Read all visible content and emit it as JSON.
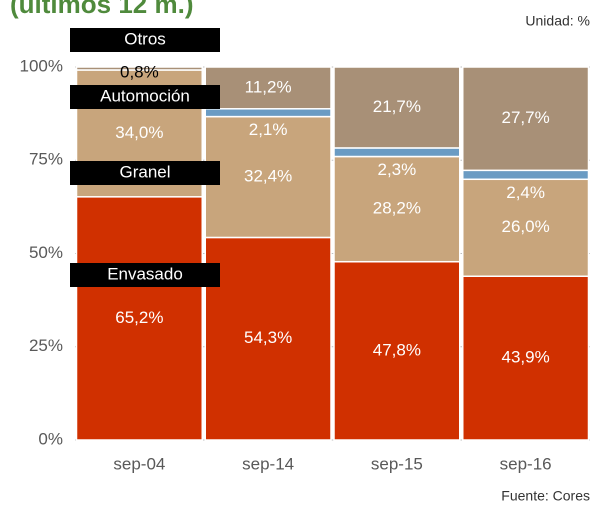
{
  "chart_data": {
    "type": "stacked_bar",
    "title": "(últimos 12 m.)",
    "unit_note": "Unidad: %",
    "source": "Fuente: Cores",
    "categories": [
      "sep-04",
      "sep-14",
      "sep-15",
      "sep-16"
    ],
    "series": [
      {
        "name": "Envasado",
        "color": "#d03000",
        "values": [
          65.2,
          54.3,
          47.8,
          43.9
        ],
        "value_labels": [
          "65,2%",
          "54,3%",
          "47,8%",
          "43,9%"
        ]
      },
      {
        "name": "Granel",
        "color": "#c8a57c",
        "values": [
          34.0,
          32.4,
          28.2,
          26.0
        ],
        "value_labels": [
          "34,0%",
          "32,4%",
          "28,2%",
          "26,0%"
        ]
      },
      {
        "name": "Automoción",
        "color": "#6a9bc3",
        "values": [
          null,
          2.1,
          2.3,
          2.4
        ],
        "value_labels": [
          null,
          "2,1%",
          "2,3%",
          "2,4%"
        ]
      },
      {
        "name": "Otros",
        "color": "#a89077",
        "values": [
          0.8,
          11.2,
          21.7,
          27.7
        ],
        "value_labels": [
          "0,8%",
          "11,2%",
          "21,7%",
          "27,7%"
        ]
      }
    ],
    "ylim": [
      0,
      100
    ],
    "yticks": [
      {
        "value": 0,
        "label": "0%"
      },
      {
        "value": 25,
        "label": "25%"
      },
      {
        "value": 50,
        "label": "50%"
      },
      {
        "value": 75,
        "label": "75%"
      },
      {
        "value": 100,
        "label": "100%"
      }
    ],
    "grid": true
  }
}
